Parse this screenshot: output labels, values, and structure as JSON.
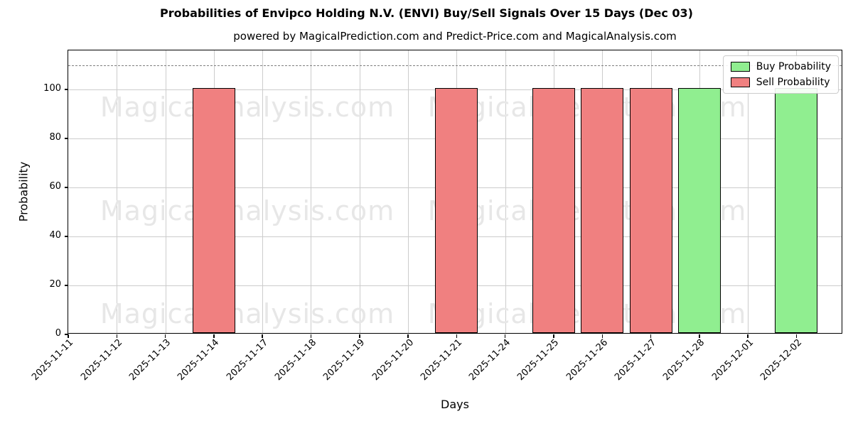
{
  "title": "Probabilities of Envipco Holding N.V. (ENVI) Buy/Sell Signals Over 15 Days (Dec 03)",
  "subtitle": "powered by MagicalPrediction.com and Predict-Price.com and MagicalAnalysis.com",
  "watermarks": {
    "left_text": "MagicalAnalysis.com",
    "right_text": "MagicalPrediction.com"
  },
  "chart_data": {
    "type": "bar",
    "title": "Probabilities of Envipco Holding N.V. (ENVI) Buy/Sell Signals Over 15 Days (Dec 03)",
    "subtitle": "powered by MagicalPrediction.com and Predict-Price.com and MagicalAnalysis.com",
    "xlabel": "Days",
    "ylabel": "Probability",
    "categories": [
      "2025-11-11",
      "2025-11-12",
      "2025-11-13",
      "2025-11-14",
      "2025-11-17",
      "2025-11-18",
      "2025-11-19",
      "2025-11-20",
      "2025-11-21",
      "2025-11-24",
      "2025-11-25",
      "2025-11-26",
      "2025-11-27",
      "2025-11-28",
      "2025-12-01",
      "2025-12-02"
    ],
    "series": [
      {
        "name": "Buy Probability",
        "color": "#90EE90",
        "values": [
          0,
          0,
          0,
          0,
          0,
          0,
          0,
          0,
          0,
          0,
          0,
          0,
          0,
          100,
          0,
          100
        ]
      },
      {
        "name": "Sell Probability",
        "color": "#F08080",
        "values": [
          0,
          0,
          0,
          100,
          0,
          0,
          0,
          0,
          100,
          0,
          100,
          100,
          100,
          0,
          0,
          0
        ]
      }
    ],
    "ylim": [
      0,
      116
    ],
    "yticks": [
      0,
      20,
      40,
      60,
      80,
      100
    ],
    "dashed_line_y": 110,
    "grid": true,
    "legend_position": "upper right",
    "bar_edge_color": "#000000"
  }
}
